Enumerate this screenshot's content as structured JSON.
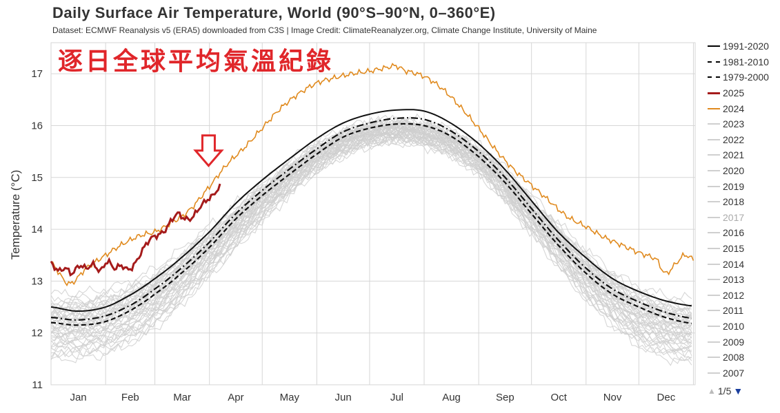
{
  "header": {
    "title": "Daily Surface Air Temperature, World (90°S–90°N, 0–360°E)",
    "subtitle": "Dataset: ECMWF Reanalysis v5 (ERA5) downloaded from C3S | Image Credit: ClimateReanalyzer.org, Climate Change Institute, University of Maine",
    "overlay_title": "逐日全球平均氣溫紀錄"
  },
  "legend": {
    "items": [
      {
        "label": "1991-2020",
        "style": "solid",
        "color": "#000000"
      },
      {
        "label": "1981-2010",
        "style": "dashdot",
        "color": "#000000"
      },
      {
        "label": "1979-2000",
        "style": "dashed",
        "color": "#000000"
      },
      {
        "label": "2025",
        "style": "solid-thick",
        "color": "#a51b1b"
      },
      {
        "label": "2024",
        "style": "solid",
        "color": "#e08a1e"
      },
      {
        "label": "2023",
        "style": "solid",
        "color": "#cfcfcf"
      },
      {
        "label": "2022",
        "style": "solid",
        "color": "#cfcfcf"
      },
      {
        "label": "2021",
        "style": "solid",
        "color": "#cfcfcf"
      },
      {
        "label": "2020",
        "style": "solid",
        "color": "#cfcfcf"
      },
      {
        "label": "2019",
        "style": "solid",
        "color": "#cfcfcf"
      },
      {
        "label": "2018",
        "style": "solid",
        "color": "#cfcfcf"
      },
      {
        "label": "2017",
        "style": "solid",
        "color": "#cfcfcf",
        "dim": true
      },
      {
        "label": "2016",
        "style": "solid",
        "color": "#cfcfcf"
      },
      {
        "label": "2015",
        "style": "solid",
        "color": "#cfcfcf"
      },
      {
        "label": "2014",
        "style": "solid",
        "color": "#cfcfcf"
      },
      {
        "label": "2013",
        "style": "solid",
        "color": "#cfcfcf"
      },
      {
        "label": "2012",
        "style": "solid",
        "color": "#cfcfcf"
      },
      {
        "label": "2011",
        "style": "solid",
        "color": "#cfcfcf"
      },
      {
        "label": "2010",
        "style": "solid",
        "color": "#cfcfcf"
      },
      {
        "label": "2009",
        "style": "solid",
        "color": "#cfcfcf"
      },
      {
        "label": "2008",
        "style": "solid",
        "color": "#cfcfcf"
      },
      {
        "label": "2007",
        "style": "solid",
        "color": "#cfcfcf"
      }
    ],
    "pager": "1/5",
    "pager_up_icon": "triangle-up",
    "pager_down_icon": "triangle-down"
  },
  "chart_data": {
    "type": "line",
    "ylabel": "Temperature (°C)",
    "xlabel": "",
    "ylim": [
      11,
      17.6
    ],
    "xlim": [
      0,
      366
    ],
    "yticks": [
      11,
      12,
      13,
      14,
      15,
      16,
      17
    ],
    "months": [
      "Jan",
      "Feb",
      "Mar",
      "Apr",
      "May",
      "Jun",
      "Jul",
      "Aug",
      "Sep",
      "Oct",
      "Nov",
      "Dec"
    ],
    "annotation": {
      "type": "down-arrow",
      "day": 95,
      "temp": 15.2,
      "color": "#e0262a"
    },
    "series": [
      {
        "name": "1991-2020",
        "style": "solid",
        "color": "#111111",
        "x": [
          0,
          15,
          31,
          46,
          59,
          74,
          90,
          105,
          120,
          135,
          151,
          166,
          181,
          196,
          212,
          227,
          243,
          258,
          273,
          288,
          304,
          319,
          334,
          349,
          365
        ],
        "y": [
          12.5,
          12.42,
          12.5,
          12.75,
          13.05,
          13.45,
          13.95,
          14.5,
          14.95,
          15.35,
          15.75,
          16.05,
          16.22,
          16.3,
          16.28,
          16.05,
          15.65,
          15.15,
          14.55,
          13.95,
          13.45,
          13.05,
          12.8,
          12.62,
          12.52
        ]
      },
      {
        "name": "1981-2010",
        "style": "dashdot",
        "color": "#111111",
        "x": [
          0,
          15,
          31,
          46,
          59,
          74,
          90,
          105,
          120,
          135,
          151,
          166,
          181,
          196,
          212,
          227,
          243,
          258,
          273,
          288,
          304,
          319,
          334,
          349,
          365
        ],
        "y": [
          12.3,
          12.25,
          12.33,
          12.55,
          12.85,
          13.25,
          13.75,
          14.3,
          14.75,
          15.15,
          15.55,
          15.88,
          16.05,
          16.14,
          16.12,
          15.9,
          15.5,
          15.0,
          14.4,
          13.8,
          13.25,
          12.85,
          12.6,
          12.4,
          12.28
        ]
      },
      {
        "name": "1979-2000",
        "style": "dashed",
        "color": "#111111",
        "x": [
          0,
          15,
          31,
          46,
          59,
          74,
          90,
          105,
          120,
          135,
          151,
          166,
          181,
          196,
          212,
          227,
          243,
          258,
          273,
          288,
          304,
          319,
          334,
          349,
          365
        ],
        "y": [
          12.2,
          12.15,
          12.22,
          12.45,
          12.75,
          13.15,
          13.65,
          14.2,
          14.65,
          15.05,
          15.45,
          15.78,
          15.95,
          16.03,
          16.0,
          15.8,
          15.4,
          14.9,
          14.3,
          13.7,
          13.15,
          12.75,
          12.5,
          12.3,
          12.18
        ]
      },
      {
        "name": "2025",
        "style": "solid-thick",
        "color": "#a51b1b",
        "x": [
          0,
          4,
          8,
          12,
          16,
          20,
          24,
          28,
          32,
          36,
          40,
          44,
          48,
          52,
          56,
          60,
          64,
          68,
          72,
          76,
          80,
          84,
          88,
          92,
          96
        ],
        "y": [
          13.35,
          13.2,
          13.25,
          13.15,
          13.3,
          13.25,
          13.32,
          13.2,
          13.38,
          13.25,
          13.3,
          13.22,
          13.35,
          13.6,
          13.8,
          13.88,
          13.95,
          14.15,
          14.3,
          14.2,
          14.22,
          14.4,
          14.55,
          14.65,
          14.82
        ]
      },
      {
        "name": "2024",
        "style": "solid",
        "color": "#e08a1e",
        "x": [
          0,
          10,
          20,
          31,
          41,
          51,
          59,
          68,
          78,
          90,
          100,
          110,
          120,
          130,
          140,
          151,
          161,
          171,
          181,
          191,
          196,
          201,
          212,
          222,
          232,
          243,
          253,
          263,
          273,
          283,
          293,
          304,
          314,
          324,
          334,
          344,
          349,
          354,
          360,
          365
        ],
        "y": [
          13.35,
          12.95,
          13.25,
          13.5,
          13.72,
          13.88,
          13.95,
          14.12,
          14.35,
          14.82,
          15.25,
          15.58,
          15.95,
          16.32,
          16.6,
          16.82,
          16.92,
          17.0,
          17.05,
          17.12,
          17.15,
          17.06,
          16.95,
          16.72,
          16.38,
          15.95,
          15.52,
          15.15,
          14.85,
          14.55,
          14.25,
          14.05,
          13.85,
          13.7,
          13.55,
          13.42,
          13.15,
          13.3,
          13.5,
          13.42
        ]
      }
    ],
    "grey_years": {
      "labels": [
        "2023",
        "2022",
        "2021",
        "2020",
        "2019",
        "2018",
        "2017",
        "2016",
        "2015",
        "2014",
        "2013",
        "2012",
        "2011",
        "2010",
        "2009",
        "2008",
        "2007"
      ],
      "color": "#cfcfcf",
      "x": [
        0,
        31,
        59,
        90,
        120,
        151,
        181,
        212,
        243,
        273,
        304,
        334,
        365
      ],
      "mean_y": [
        12.15,
        12.25,
        12.7,
        13.6,
        14.55,
        15.4,
        15.85,
        15.85,
        15.35,
        14.3,
        13.15,
        12.35,
        12.05
      ],
      "offsets": [
        0.55,
        0.45,
        0.4,
        0.35,
        0.3,
        0.28,
        0.25,
        0.22,
        0.2,
        0.15,
        0.12,
        0.1,
        0.08,
        0.05,
        0.02,
        0.0,
        -0.03,
        -0.06,
        -0.1,
        -0.13,
        -0.16,
        -0.2,
        -0.24,
        -0.28,
        -0.32,
        -0.36,
        -0.4,
        -0.45,
        -0.5,
        -0.55,
        -0.6,
        0.32,
        0.18,
        -0.08,
        -0.22,
        0.38,
        -0.42,
        0.07,
        -0.15,
        0.26,
        -0.33,
        0.12,
        -0.02
      ]
    }
  }
}
